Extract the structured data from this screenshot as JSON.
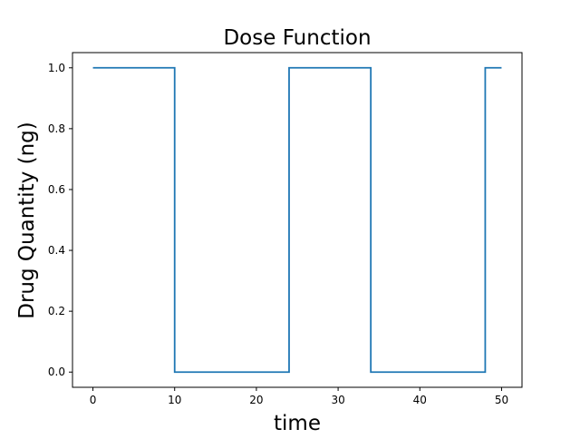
{
  "chart_data": {
    "type": "line",
    "title": "Dose Function",
    "xlabel": "time",
    "ylabel": "Drug Quantity (ng)",
    "xlim": [
      -2.5,
      52.5
    ],
    "ylim": [
      -0.05,
      1.05
    ],
    "xticks": [
      0,
      10,
      20,
      30,
      40,
      50
    ],
    "yticks": [
      0.0,
      0.2,
      0.4,
      0.6,
      0.8,
      1.0
    ],
    "xtick_labels": [
      "0",
      "10",
      "20",
      "30",
      "40",
      "50"
    ],
    "ytick_labels": [
      "0.0",
      "0.2",
      "0.4",
      "0.6",
      "0.8",
      "1.0"
    ],
    "grid": false,
    "series": [
      {
        "color": "#1f77b4",
        "x": [
          0,
          10,
          10,
          24,
          24,
          34,
          34,
          48,
          48,
          50
        ],
        "y": [
          1,
          1,
          0,
          0,
          1,
          1,
          0,
          0,
          1,
          1
        ]
      }
    ]
  }
}
